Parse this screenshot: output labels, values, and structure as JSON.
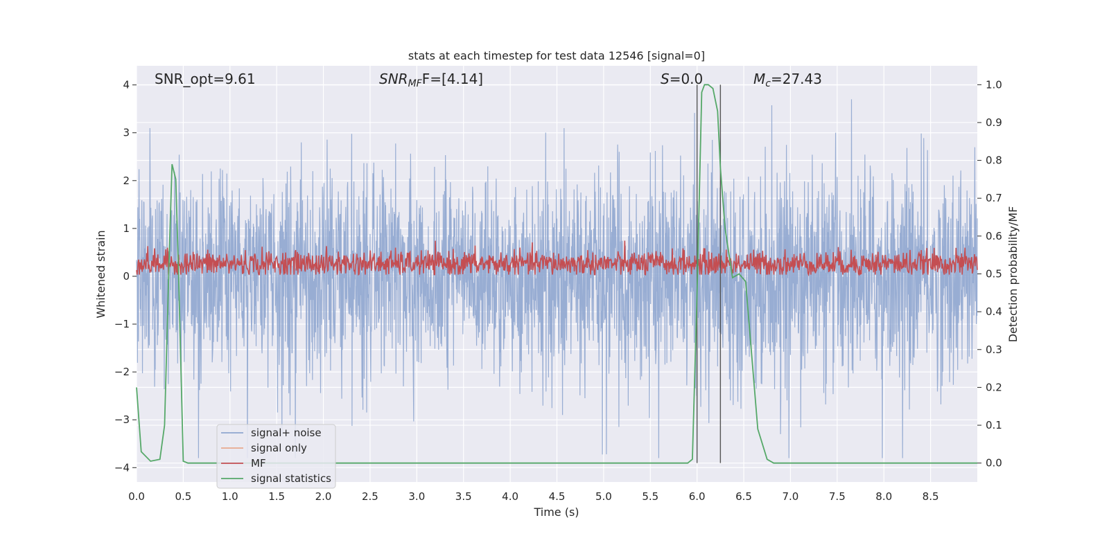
{
  "chart_data": {
    "type": "line",
    "title": "stats at each timestep for test data 12546 [signal=0]",
    "xlabel": "Time (s)",
    "ylabel_left": "Whitened strain",
    "ylabel_right": "Detection probability/MF",
    "xlim": [
      0.0,
      9.0
    ],
    "ylim_left": [
      -4.3,
      4.4
    ],
    "ylim_right": [
      -0.05,
      1.05
    ],
    "x_ticks": [
      "0.0",
      "0.5",
      "1.0",
      "1.5",
      "2.0",
      "2.5",
      "3.0",
      "3.5",
      "4.0",
      "4.5",
      "5.0",
      "5.5",
      "6.0",
      "6.5",
      "7.0",
      "7.5",
      "8.0",
      "8.5"
    ],
    "y_ticks_left": [
      "−4",
      "−3",
      "−2",
      "−1",
      "0",
      "1",
      "2",
      "3",
      "4"
    ],
    "y_ticks_right": [
      "0.0",
      "0.1",
      "0.2",
      "0.3",
      "0.4",
      "0.5",
      "0.6",
      "0.7",
      "0.8",
      "0.9",
      "1.0"
    ],
    "annotations": {
      "snr_opt": "SNR_opt=9.61",
      "snr_mf_label": "SNR",
      "snr_mf_sub": "MF",
      "snr_mf_value": "F=[4.14]",
      "s_label": "S",
      "s_value": "=0.0",
      "mc_label": "M",
      "mc_sub": "c",
      "mc_value": "=27.43"
    },
    "vertical_lines_x": [
      6.0,
      6.25
    ],
    "legend": [
      {
        "name": "signal+ noise",
        "color": "#8fa6cf"
      },
      {
        "name": "signal only",
        "color": "#e8a98e"
      },
      {
        "name": "MF",
        "color": "#c44e52"
      },
      {
        "name": "signal statistics",
        "color": "#55a868"
      }
    ],
    "series": [
      {
        "name": "signal statistics",
        "axis": "right",
        "x": [
          0.0,
          0.05,
          0.15,
          0.25,
          0.3,
          0.35,
          0.38,
          0.42,
          0.45,
          0.5,
          0.55,
          0.6,
          5.9,
          5.95,
          6.0,
          6.05,
          6.08,
          6.12,
          6.17,
          6.22,
          6.25,
          6.3,
          6.38,
          6.45,
          6.52,
          6.58,
          6.65,
          6.75,
          6.82,
          9.0
        ],
        "y": [
          0.2,
          0.03,
          0.005,
          0.01,
          0.1,
          0.55,
          0.79,
          0.75,
          0.5,
          0.005,
          0.0,
          0.0,
          0.0,
          0.01,
          0.45,
          0.98,
          1.0,
          1.0,
          0.99,
          0.93,
          0.78,
          0.62,
          0.49,
          0.5,
          0.48,
          0.3,
          0.09,
          0.01,
          0.0,
          0.0
        ]
      },
      {
        "name": "signal+ noise",
        "axis": "left",
        "style": "dense noise, approx. ±1.5 strain with spikes to ±3.8"
      },
      {
        "name": "MF",
        "axis": "right",
        "style": "dense noise, approx. 0.50–0.60"
      }
    ]
  }
}
